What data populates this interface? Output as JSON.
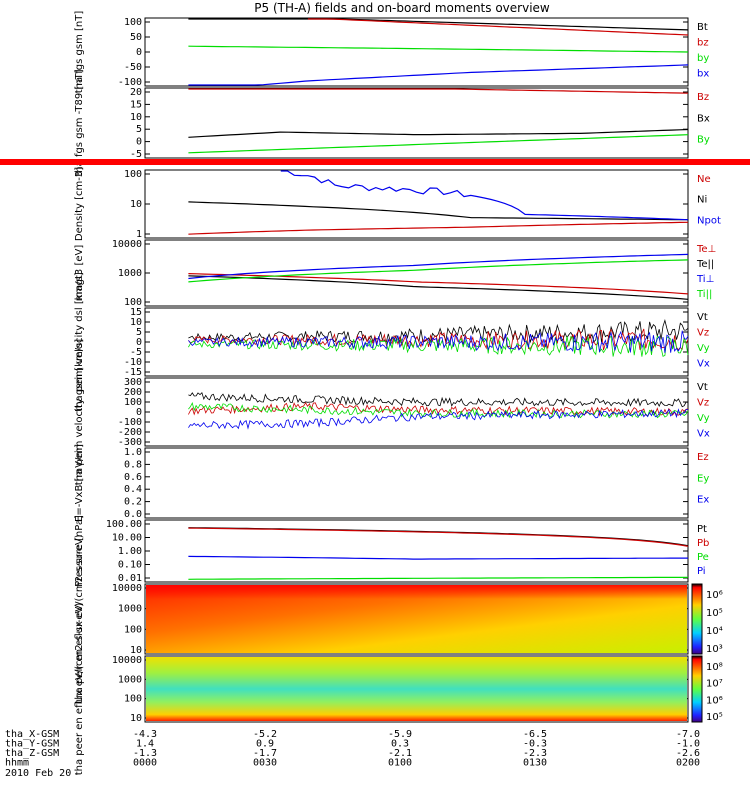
{
  "title": "P5 (TH-A) fields and on-board moments overview",
  "date": "2010 Feb 20",
  "colors": {
    "black": "#000000",
    "red": "#cc0000",
    "green": "#00dd00",
    "blue": "#0000ee"
  },
  "ephemeris": {
    "rows": [
      {
        "label": "tha_X-GSM",
        "values": [
          "-4.3",
          "-5.2",
          "-5.9",
          "-6.5",
          "-7.0"
        ]
      },
      {
        "label": "tha_Y-GSM",
        "values": [
          "1.4",
          "0.9",
          "0.3",
          "-0.3",
          "-1.0"
        ]
      },
      {
        "label": "tha_Z-GSM",
        "values": [
          "-1.3",
          "-1.7",
          "-2.1",
          "-2.3",
          "-2.6"
        ]
      },
      {
        "label": "hhmm",
        "values": [
          "0000",
          "0030",
          "0100",
          "0130",
          "0200"
        ]
      }
    ]
  },
  "chart_data": [
    {
      "type": "line",
      "ylabel": "tha fgs gsm [nT]",
      "ylim": [
        -100,
        100
      ],
      "yticks": [
        "100",
        "50",
        "0",
        "-50",
        "-100"
      ],
      "series": [
        {
          "name": "Bt",
          "color": "black",
          "x": [
            0.08,
            0.3,
            1.0
          ],
          "values": [
            125,
            100,
            65
          ]
        },
        {
          "name": "bz",
          "color": "red",
          "x": [
            0.3,
            1.0
          ],
          "values": [
            100,
            50
          ]
        },
        {
          "name": "by",
          "color": "green",
          "x": [
            0.08,
            0.5,
            1.0
          ],
          "values": [
            17,
            10,
            0
          ]
        },
        {
          "name": "bx",
          "color": "blue",
          "x": [
            0.08,
            0.3,
            0.6,
            1.0
          ],
          "values": [
            -115,
            -85,
            -60,
            -38
          ]
        }
      ]
    },
    {
      "type": "line",
      "ylabel": "tha fgs gsm -T89 [nT]",
      "ylim": [
        -7,
        20
      ],
      "yticks": [
        "20",
        "15",
        "10",
        "5",
        "0",
        "-5"
      ],
      "series": [
        {
          "name": "Bz",
          "color": "red",
          "x": [
            0.08,
            0.3,
            0.6,
            1.0
          ],
          "values": [
            21,
            21.5,
            19.5,
            18
          ]
        },
        {
          "name": "Bx",
          "color": "black",
          "x": [
            0.08,
            0.25,
            0.5,
            0.8,
            1.0
          ],
          "values": [
            1,
            3,
            2,
            2.5,
            4
          ]
        },
        {
          "name": "By",
          "color": "green",
          "x": [
            0.08,
            1.0
          ],
          "values": [
            -5,
            2
          ]
        }
      ]
    },
    {
      "type": "line",
      "ylabel": "Density [cm-3]",
      "scale": "log",
      "ylim": [
        0.5,
        200
      ],
      "yticks": [
        "100",
        "10",
        "1"
      ],
      "series": [
        {
          "name": "Ne",
          "color": "red",
          "x": [
            0.08,
            0.3,
            0.6,
            1.0
          ],
          "values": [
            0.7,
            1.0,
            1.3,
            2.0
          ]
        },
        {
          "name": "Ni",
          "color": "black",
          "x": [
            0.08,
            0.3,
            0.6,
            1.0
          ],
          "values": [
            12,
            8,
            3,
            2.5
          ]
        },
        {
          "name": "Npot",
          "color": "blue",
          "x": [
            0.25,
            0.35,
            0.55,
            0.7,
            1.0
          ],
          "values": [
            200,
            50,
            30,
            4,
            2.5
          ]
        }
      ]
    },
    {
      "type": "line",
      "ylabel": "magt3 [eV]",
      "scale": "log",
      "ylim": [
        40,
        10000
      ],
      "yticks": [
        "10000",
        "1000",
        "100"
      ],
      "series": [
        {
          "name": "Te⊥",
          "color": "red",
          "x": [
            0.08,
            0.5,
            1.0
          ],
          "values": [
            600,
            300,
            110
          ]
        },
        {
          "name": "Te||",
          "color": "black",
          "x": [
            0.08,
            0.5,
            1.0
          ],
          "values": [
            500,
            200,
            70
          ]
        },
        {
          "name": "Ti⊥",
          "color": "blue",
          "x": [
            0.08,
            0.5,
            1.0
          ],
          "values": [
            400,
            1200,
            3000
          ]
        },
        {
          "name": "Ti||",
          "color": "green",
          "x": [
            0.08,
            0.5,
            1.0
          ],
          "values": [
            300,
            800,
            1900
          ]
        }
      ]
    },
    {
      "type": "line",
      "ylabel": "tha peim velocity dsl [km/s]",
      "ylim": [
        -15,
        15
      ],
      "yticks": [
        "15",
        "10",
        "5",
        "0",
        "-5",
        "-10",
        "-15"
      ],
      "series": [
        {
          "name": "Vt",
          "color": "black",
          "x": [
            0.08,
            0.5,
            1.0
          ],
          "values": [
            2,
            3,
            5
          ]
        },
        {
          "name": "Vz",
          "color": "red",
          "x": [
            0.08,
            1.0
          ],
          "values": [
            1,
            1
          ]
        },
        {
          "name": "Vy",
          "color": "green",
          "x": [
            0.08,
            1.0
          ],
          "values": [
            -1,
            -2
          ]
        },
        {
          "name": "Vx",
          "color": "blue",
          "x": [
            0.08,
            1.0
          ],
          "values": [
            0,
            0
          ]
        }
      ]
    },
    {
      "type": "line",
      "ylabel": "tha peim velocity gsm [km/s]",
      "ylim": [
        -300,
        300
      ],
      "yticks": [
        "300",
        "200",
        "100",
        "0",
        "-100",
        "-200",
        "-300"
      ],
      "series": [
        {
          "name": "Vt",
          "color": "black",
          "x": [
            0.08,
            0.3,
            0.5,
            1.0
          ],
          "values": [
            140,
            110,
            90,
            80
          ]
        },
        {
          "name": "Vz",
          "color": "red",
          "x": [
            0.08,
            0.3,
            0.5,
            1.0
          ],
          "values": [
            10,
            50,
            20,
            0
          ]
        },
        {
          "name": "Vy",
          "color": "green",
          "x": [
            0.08,
            0.5,
            1.0
          ],
          "values": [
            50,
            -10,
            -20
          ]
        },
        {
          "name": "Vx",
          "color": "blue",
          "x": [
            0.08,
            0.3,
            0.5,
            1.0
          ],
          "values": [
            -120,
            -100,
            -40,
            -10
          ]
        }
      ]
    },
    {
      "type": "line",
      "ylabel": "E=-VxB [mV/m]",
      "ylim": [
        0,
        1
      ],
      "yticks": [
        "1.0",
        "0.8",
        "0.6",
        "0.4",
        "0.2",
        "0.0"
      ],
      "series": [
        {
          "name": "Ez",
          "color": "red",
          "values": []
        },
        {
          "name": "Ey",
          "color": "green",
          "values": []
        },
        {
          "name": "Ex",
          "color": "blue",
          "values": []
        }
      ]
    },
    {
      "type": "line",
      "ylabel": "Pressure [nPa]",
      "scale": "log",
      "ylim": [
        0.01,
        100
      ],
      "yticks": [
        "100.00",
        "10.00",
        "1.00",
        "0.10",
        "0.01"
      ],
      "series": [
        {
          "name": "Pt",
          "color": "black",
          "x": [
            0.08,
            1.0
          ],
          "values": [
            32,
            2.2
          ]
        },
        {
          "name": "Pb",
          "color": "red",
          "x": [
            0.08,
            1.0
          ],
          "values": [
            30,
            2.0
          ]
        },
        {
          "name": "Pe",
          "color": "green",
          "x": [
            0.08,
            1.0
          ],
          "values": [
            0.015,
            0.02
          ]
        },
        {
          "name": "Pi",
          "color": "blue",
          "x": [
            0.08,
            0.5,
            1.0
          ],
          "values": [
            0.45,
            0.3,
            0.35
          ]
        }
      ]
    },
    {
      "type": "heatmap",
      "ylabel": "tha peir en eflux eV/(cm2-s-sr-eV)",
      "yticks": [
        "10000",
        "1000",
        "100",
        "10"
      ],
      "colorbar_ticks": [
        "10⁶",
        "10⁵",
        "10⁴",
        "10³"
      ]
    },
    {
      "type": "heatmap",
      "ylabel": "tha peer en eflux eV/(cm2-s-sr-eV)",
      "yticks": [
        "10000",
        "1000",
        "100",
        "10"
      ],
      "colorbar_ticks": [
        "10⁸",
        "10⁷",
        "10⁶",
        "10⁵"
      ]
    }
  ]
}
